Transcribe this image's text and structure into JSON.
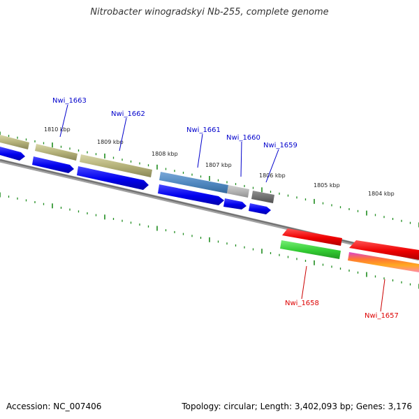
{
  "title": "Nitrobacter winogradskyi Nb-255, complete genome",
  "footer": {
    "accession": "Accession: NC_007406",
    "topology": "Topology: circular; Length: 3,402,093 bp; Genes: 3,176"
  },
  "kbp_labels": [
    "1810 kbp",
    "1809 kbp",
    "1808 kbp",
    "1807 kbp",
    "1806 kbp",
    "1805 kbp",
    "1804 kbp"
  ],
  "genes": [
    {
      "id": "Nwi_1663",
      "strand": "forward",
      "color": "#2222cc"
    },
    {
      "id": "Nwi_1662",
      "strand": "forward",
      "color": "#2222cc"
    },
    {
      "id": "Nwi_1661",
      "strand": "forward",
      "color": "#2222cc"
    },
    {
      "id": "Nwi_1660",
      "strand": "forward",
      "color": "#2222cc"
    },
    {
      "id": "Nwi_1659",
      "strand": "forward",
      "color": "#2222cc"
    },
    {
      "id": "Nwi_1658",
      "strand": "reverse",
      "color": "#dd1111"
    },
    {
      "id": "Nwi_1657",
      "strand": "reverse",
      "color": "#dd1111"
    }
  ],
  "colors": {
    "backbone": "#808080",
    "ticks": "#1e8c1e",
    "cds_forward": "#0000ee",
    "cds_reverse": "#ee0000",
    "category_olive": "#b5b27a",
    "category_steelblue": "#4f87bf",
    "category_gray": "#b0b0b0",
    "category_dark": "#6e6e6e",
    "category_green": "#33cc33"
  }
}
